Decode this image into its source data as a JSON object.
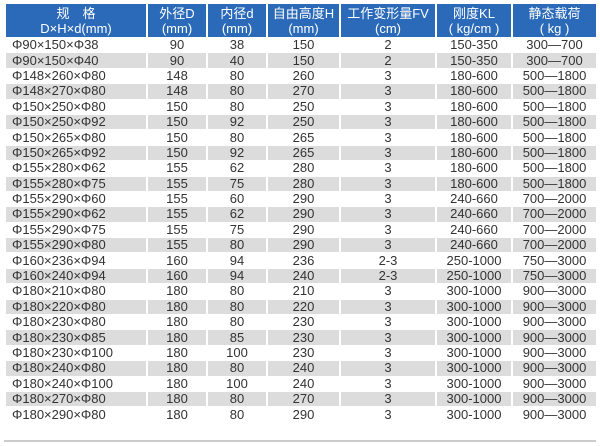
{
  "header": [
    {
      "line1": "规　格",
      "line2": "D×H×d(mm)"
    },
    {
      "line1": "外径D",
      "line2": "(mm)"
    },
    {
      "line1": "内径d",
      "line2": "(mm)"
    },
    {
      "line1": "自由高度H",
      "line2": "(mm)"
    },
    {
      "line1": "工作变形量FV",
      "line2": "(cm)"
    },
    {
      "line1": "刚度KL",
      "line2": "( kg/cm )"
    },
    {
      "line1": "静态载荷",
      "line2": "( kg )"
    }
  ],
  "rows": [
    [
      "Φ90×150×Φ38",
      "90",
      "38",
      "150",
      "2",
      "150-350",
      "300—700"
    ],
    [
      "Φ90×150×Φ40",
      "90",
      "40",
      "150",
      "2",
      "150-350",
      "300—700"
    ],
    [
      "Φ148×260×Φ80",
      "148",
      "80",
      "260",
      "3",
      "180-600",
      "500—1800"
    ],
    [
      "Φ148×270×Φ80",
      "148",
      "80",
      "270",
      "3",
      "180-600",
      "500—1800"
    ],
    [
      "Φ150×250×Φ80",
      "150",
      "80",
      "250",
      "3",
      "180-600",
      "500—1800"
    ],
    [
      "Φ150×250×Φ92",
      "150",
      "92",
      "250",
      "3",
      "180-600",
      "500—1800"
    ],
    [
      "Φ150×265×Φ80",
      "150",
      "80",
      "265",
      "3",
      "180-600",
      "500—1800"
    ],
    [
      "Φ150×265×Φ92",
      "150",
      "92",
      "265",
      "3",
      "180-600",
      "500—1800"
    ],
    [
      "Φ155×280×Φ62",
      "155",
      "62",
      "280",
      "3",
      "180-600",
      "500—1800"
    ],
    [
      "Φ155×280×Φ75",
      "155",
      "75",
      "280",
      "3",
      "180-600",
      "500—1800"
    ],
    [
      "Φ155×290×Φ60",
      "155",
      "60",
      "290",
      "3",
      "240-660",
      "700—2000"
    ],
    [
      "Φ155×290×Φ62",
      "155",
      "62",
      "290",
      "3",
      "240-660",
      "700—2000"
    ],
    [
      "Φ155×290×Φ75",
      "155",
      "75",
      "290",
      "3",
      "240-660",
      "700—2000"
    ],
    [
      "Φ155×290×Φ80",
      "155",
      "80",
      "290",
      "3",
      "240-660",
      "700—2000"
    ],
    [
      "Φ160×236×Φ94",
      "160",
      "94",
      "236",
      "2-3",
      "250-1000",
      "750—3000"
    ],
    [
      "Φ160×240×Φ94",
      "160",
      "94",
      "240",
      "2-3",
      "250-1000",
      "750—3000"
    ],
    [
      "Φ180×210×Φ80",
      "180",
      "80",
      "210",
      "3",
      "300-1000",
      "900—3000"
    ],
    [
      "Φ180×220×Φ80",
      "180",
      "80",
      "220",
      "3",
      "300-1000",
      "900—3000"
    ],
    [
      "Φ180×230×Φ80",
      "180",
      "80",
      "230",
      "3",
      "300-1000",
      "900—3000"
    ],
    [
      "Φ180×230×Φ85",
      "180",
      "85",
      "230",
      "3",
      "300-1000",
      "900—3000"
    ],
    [
      "Φ180×230×Φ100",
      "180",
      "100",
      "230",
      "3",
      "300-1000",
      "900—3000"
    ],
    [
      "Φ180×240×Φ80",
      "180",
      "80",
      "240",
      "3",
      "300-1000",
      "900—3000"
    ],
    [
      "Φ180×240×Φ100",
      "180",
      "100",
      "240",
      "3",
      "300-1000",
      "900—3000"
    ],
    [
      "Φ180×270×Φ80",
      "180",
      "80",
      "270",
      "3",
      "300-1000",
      "900—3000"
    ],
    [
      "Φ180×290×Φ80",
      "180",
      "80",
      "290",
      "3",
      "300-1000",
      "900—3000"
    ]
  ],
  "colors": {
    "header_bg": "#2a6ab8",
    "alt_row": "#dcdcdc"
  }
}
